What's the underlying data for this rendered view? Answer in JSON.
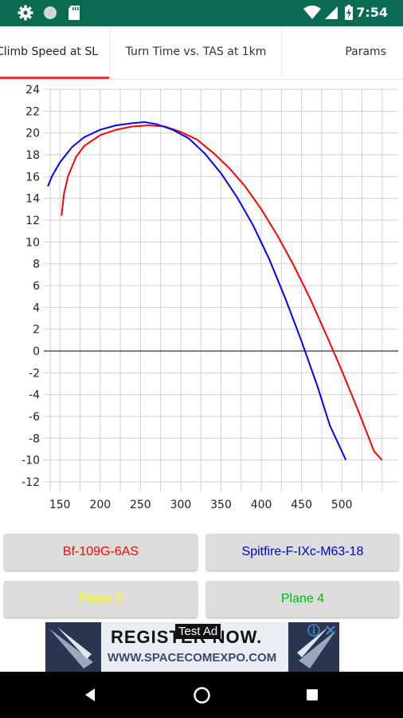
{
  "status_bar": {
    "time": "7:54",
    "icons": [
      "gear-icon",
      "circle-icon",
      "sd-card-icon",
      "wifi-icon",
      "signal-icon",
      "battery-icon"
    ]
  },
  "tabs": [
    {
      "label": "Climb Speed at SL",
      "active": true
    },
    {
      "label": "Turn Time vs. TAS at 1km",
      "active": false
    },
    {
      "label": "Params",
      "active": false
    }
  ],
  "chart_data": {
    "type": "line",
    "xlabel": "",
    "ylabel": "",
    "xlim": [
      130,
      570
    ],
    "ylim": [
      -13,
      24
    ],
    "x_ticks": [
      150,
      200,
      250,
      300,
      350,
      400,
      450,
      500
    ],
    "y_ticks": [
      24,
      22,
      20,
      18,
      16,
      14,
      12,
      10,
      8,
      6,
      4,
      2,
      0,
      -2,
      -4,
      -6,
      -8,
      -10,
      -12
    ],
    "grid": true,
    "series": [
      {
        "name": "Bf-109G-6AS",
        "color": "#ff0000",
        "points": [
          [
            152,
            12.4
          ],
          [
            155,
            14.4
          ],
          [
            160,
            16.0
          ],
          [
            170,
            17.8
          ],
          [
            180,
            18.8
          ],
          [
            200,
            19.8
          ],
          [
            220,
            20.3
          ],
          [
            240,
            20.6
          ],
          [
            260,
            20.7
          ],
          [
            280,
            20.6
          ],
          [
            300,
            20.1
          ],
          [
            320,
            19.4
          ],
          [
            340,
            18.2
          ],
          [
            360,
            16.8
          ],
          [
            380,
            15.1
          ],
          [
            400,
            13.0
          ],
          [
            420,
            10.6
          ],
          [
            440,
            7.9
          ],
          [
            460,
            4.9
          ],
          [
            480,
            1.6
          ],
          [
            500,
            -1.8
          ],
          [
            520,
            -5.4
          ],
          [
            540,
            -9.2
          ],
          [
            550,
            -10.0
          ]
        ]
      },
      {
        "name": "Spitfire-F-IXc-M63-18",
        "color": "#0000ff",
        "points": [
          [
            135,
            15.1
          ],
          [
            140,
            16.0
          ],
          [
            150,
            17.3
          ],
          [
            165,
            18.7
          ],
          [
            180,
            19.6
          ],
          [
            200,
            20.3
          ],
          [
            220,
            20.7
          ],
          [
            240,
            20.9
          ],
          [
            255,
            21.0
          ],
          [
            270,
            20.8
          ],
          [
            290,
            20.3
          ],
          [
            310,
            19.5
          ],
          [
            330,
            18.1
          ],
          [
            350,
            16.3
          ],
          [
            370,
            14.1
          ],
          [
            390,
            11.5
          ],
          [
            410,
            8.4
          ],
          [
            430,
            4.8
          ],
          [
            450,
            0.9
          ],
          [
            470,
            -3.3
          ],
          [
            485,
            -6.8
          ],
          [
            505,
            -10.0
          ]
        ]
      }
    ]
  },
  "buttons": [
    {
      "label": "Bf-109G-6AS",
      "color": "#ff0000"
    },
    {
      "label": "Spitfire-F-IXc-M63-18",
      "color": "#0000cc"
    },
    {
      "label": "Plane 3",
      "color": "#ffff00"
    },
    {
      "label": "Plane 4",
      "color": "#00bb00"
    }
  ],
  "ad": {
    "headline": "REGISTER NOW.",
    "url": "WWW.SPACECOMEXPO.COM",
    "label": "Test Ad"
  },
  "nav_bar": {
    "icons": [
      "back-icon",
      "home-icon",
      "recents-icon"
    ]
  }
}
